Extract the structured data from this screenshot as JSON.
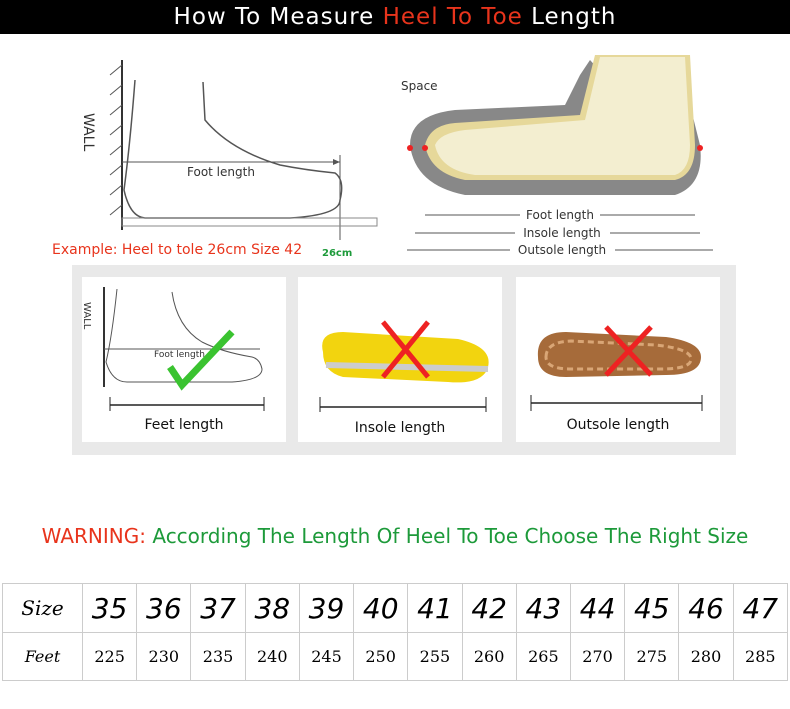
{
  "title": {
    "prefix": "How To Measure ",
    "highlight": "Heel To Toe",
    "suffix": " Length",
    "highlight_color": "#e8341c"
  },
  "diagram_left": {
    "wall": "WALL",
    "foot_length": "Foot length",
    "example": "Example: Heel to tole 26cm Size 42",
    "mark": "26cm"
  },
  "diagram_right": {
    "space": "Space",
    "foot_length": "Foot length",
    "insole_length": "Insole length",
    "outsole_length": "Outsole length"
  },
  "cards": [
    {
      "label": "Feet length",
      "wall": "WALL",
      "foot_length": "Foot length",
      "mark": "check-icon"
    },
    {
      "label": "Insole length",
      "mark": "cross-icon"
    },
    {
      "label": "Outsole length",
      "mark": "cross-icon"
    }
  ],
  "warning": {
    "label": "WARNING:",
    "text": "According The Length Of Heel To Toe Choose The Right Size"
  },
  "size_table": {
    "row_labels": [
      "Size",
      "Feet"
    ],
    "sizes": [
      "35",
      "36",
      "37",
      "38",
      "39",
      "40",
      "41",
      "42",
      "43",
      "44",
      "45",
      "46",
      "47"
    ],
    "feet": [
      "225",
      "230",
      "235",
      "240",
      "245",
      "250",
      "255",
      "260",
      "265",
      "270",
      "275",
      "280",
      "285"
    ]
  }
}
